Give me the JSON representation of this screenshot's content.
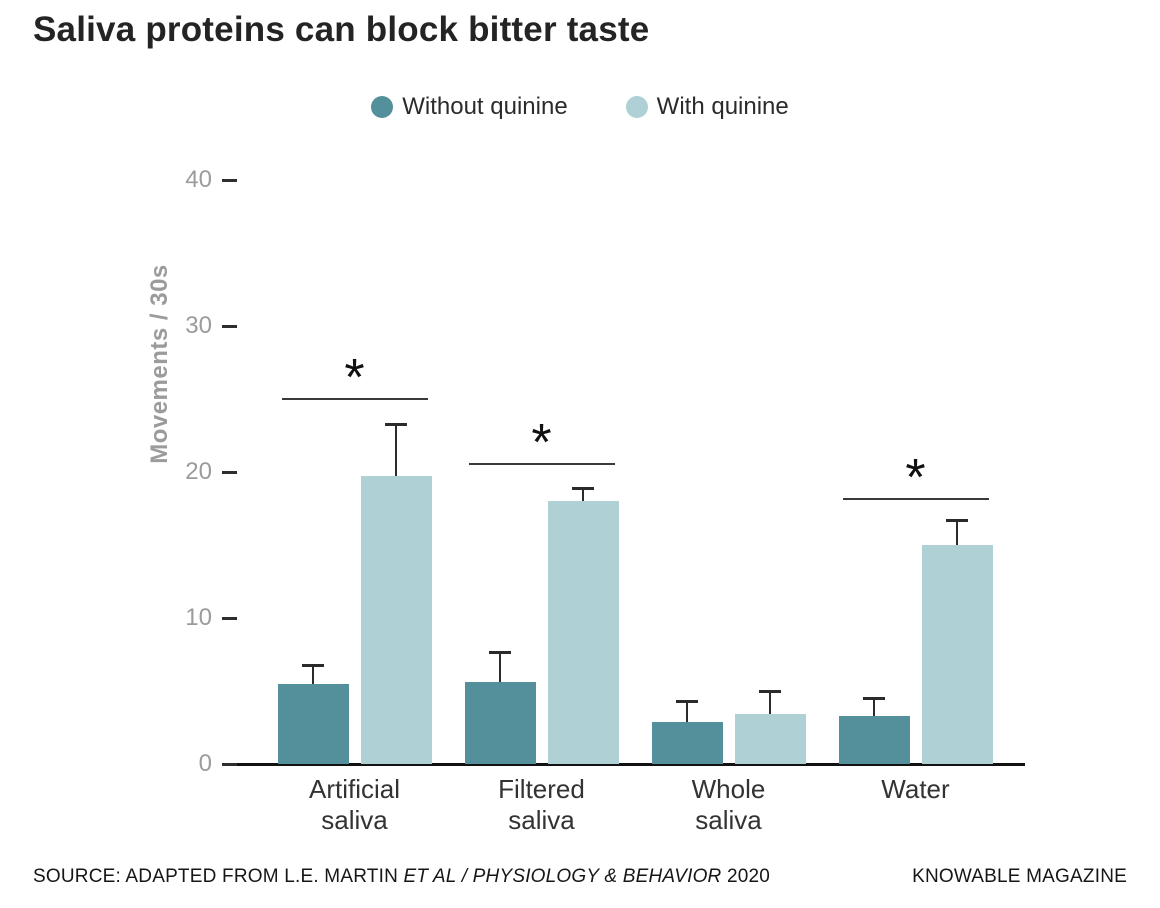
{
  "title": "Saliva proteins can block bitter taste",
  "legend": [
    {
      "label": "Without quinine",
      "color": "#53909B"
    },
    {
      "label": "With quinine",
      "color": "#AFD1D6"
    }
  ],
  "chart_data": {
    "type": "bar",
    "title": "Saliva proteins can block bitter taste",
    "categories": [
      "Artificial saliva",
      "Filtered saliva",
      "Whole saliva",
      "Water"
    ],
    "categories_display": [
      [
        "Artificial",
        "saliva"
      ],
      [
        "Filtered",
        "saliva"
      ],
      [
        "Whole",
        "saliva"
      ],
      [
        "Water"
      ]
    ],
    "series": [
      {
        "name": "Without quinine",
        "color": "#53909B",
        "values": [
          5.5,
          5.6,
          2.9,
          3.3
        ],
        "errors_plus": [
          1.3,
          2.1,
          1.4,
          1.2
        ]
      },
      {
        "name": "With quinine",
        "color": "#AFD1D6",
        "values": [
          19.7,
          18.0,
          3.4,
          15.0
        ],
        "errors_plus": [
          3.6,
          0.9,
          1.6,
          1.7
        ]
      }
    ],
    "ylabel": "Movements / 30s",
    "yticks": [
      0,
      10,
      20,
      30,
      40
    ],
    "ylim": [
      0,
      40
    ],
    "grid": false,
    "legend_position": "top",
    "significance": [
      {
        "category_index": 0,
        "marker": "*",
        "line_y": 25.1
      },
      {
        "category_index": 1,
        "marker": "*",
        "line_y": 20.6
      },
      {
        "category_index": 3,
        "marker": "*",
        "line_y": 18.2
      }
    ]
  },
  "footer": {
    "source_prefix": "SOURCE: ADAPTED FROM L.E. MARTIN ",
    "source_italic": "ET AL / PHYSIOLOGY & BEHAVIOR",
    "source_suffix": " 2020",
    "credit": "KNOWABLE MAGAZINE"
  }
}
